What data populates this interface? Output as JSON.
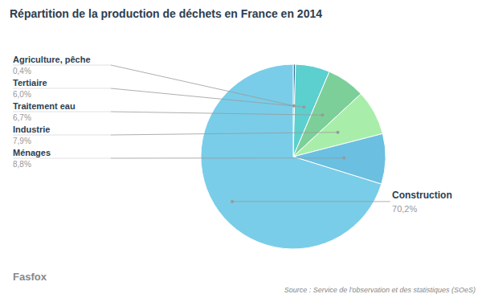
{
  "chart_data": {
    "type": "pie",
    "title": "Répartition de la production de déchets en France en 2014",
    "categories": [
      "Agriculture, pêche",
      "Tertiaire",
      "Traitement eau",
      "Industrie",
      "Ménages",
      "Construction"
    ],
    "values": [
      0.4,
      6.0,
      6.7,
      7.9,
      8.8,
      70.2
    ],
    "value_labels": [
      "0,4%",
      "6,0%",
      "6,7%",
      "7,9%",
      "8,8%",
      "70,2%"
    ],
    "colors": [
      "#2e6e92",
      "#5ccfcf",
      "#7dcf9a",
      "#a8eeaa",
      "#6bbfe0",
      "#7acde8"
    ],
    "annotations": [
      "Source : Service de l'observation et des statistiques (SOeS)",
      "Fasfox"
    ]
  }
}
